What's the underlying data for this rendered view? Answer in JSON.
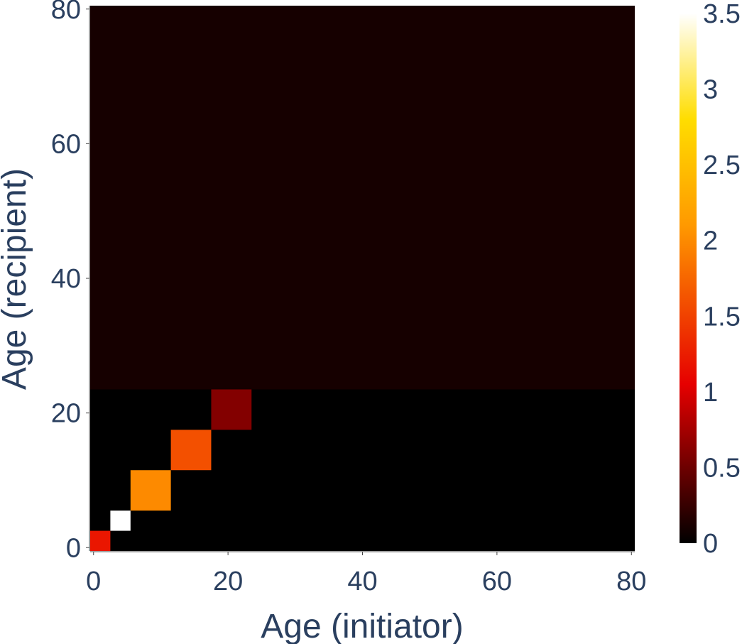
{
  "chart_data": {
    "type": "heatmap",
    "title": "",
    "xlabel": "Age (initiator)",
    "ylabel": "Age (recipient)",
    "xlim": [
      -0.5,
      80.5
    ],
    "ylim": [
      -0.5,
      80.5
    ],
    "xticks": [
      0,
      20,
      40,
      60,
      80
    ],
    "yticks": [
      0,
      20,
      40,
      60,
      80
    ],
    "background_band": {
      "y_from": 23.5,
      "y_to": 80.5,
      "value": 0.1
    },
    "cells": [
      {
        "x0": -0.5,
        "x1": 2.5,
        "y0": -0.5,
        "y1": 2.5,
        "value": 1.2
      },
      {
        "x0": 2.5,
        "x1": 5.5,
        "y0": 2.5,
        "y1": 5.5,
        "value": 3.5
      },
      {
        "x0": 5.5,
        "x1": 11.5,
        "y0": 5.5,
        "y1": 11.5,
        "value": 2.0
      },
      {
        "x0": 11.5,
        "x1": 17.5,
        "y0": 11.5,
        "y1": 17.5,
        "value": 1.6
      },
      {
        "x0": 17.5,
        "x1": 23.5,
        "y0": 17.5,
        "y1": 23.5,
        "value": 0.6
      }
    ],
    "colorscale": {
      "name": "hot",
      "min": 0,
      "max": 3.5,
      "ticks": [
        "0",
        "0.5",
        "1",
        "1.5",
        "2",
        "2.5",
        "3",
        "3.5"
      ],
      "stops": [
        [
          0.0,
          "#000000"
        ],
        [
          0.3,
          "#e60000"
        ],
        [
          0.6,
          "#ff9900"
        ],
        [
          0.8,
          "#ffdd00"
        ],
        [
          1.0,
          "#ffffff"
        ]
      ]
    },
    "grid": false,
    "legend": "colorbar-right"
  }
}
